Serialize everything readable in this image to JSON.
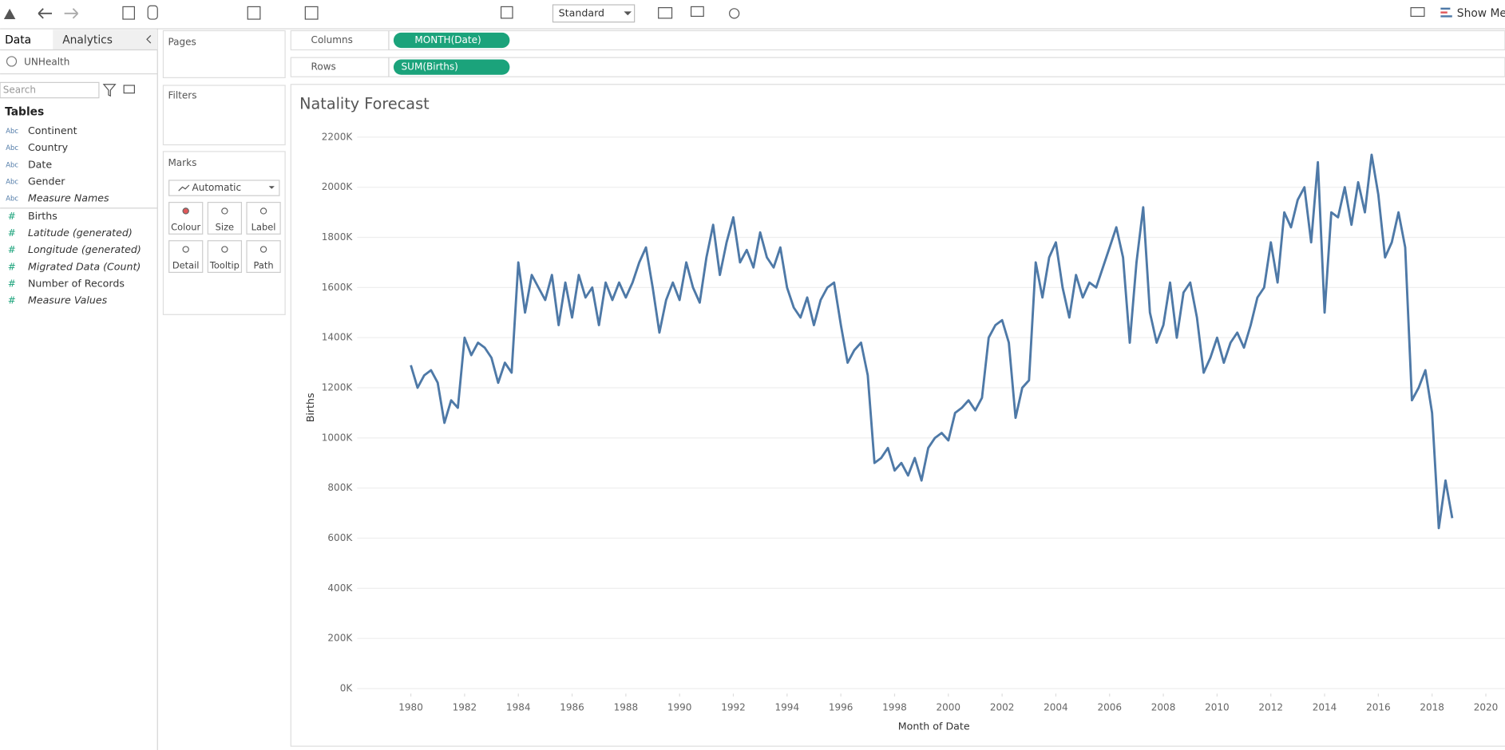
{
  "toolbar": {
    "fit": "Standard",
    "show_me": "Show Me"
  },
  "side_panel": {
    "tabs": [
      "Data",
      "Analytics"
    ],
    "data_source": "UNHealth",
    "search": "Search",
    "tables_heading": "Tables",
    "dimensions": [
      "Continent",
      "Country",
      "Date",
      "Gender",
      "Measure Names"
    ],
    "measures": [
      "Births",
      "Latitude (generated)",
      "Longitude (generated)",
      "Migrated Data (Count)",
      "Number of Records",
      "Measure Values"
    ]
  },
  "cards": {
    "pages": "Pages",
    "filters": "Filters",
    "marks": "Marks",
    "mark_type": "Automatic",
    "mark_buttons": [
      "Colour",
      "Size",
      "Label",
      "Detail",
      "Tooltip",
      "Path"
    ]
  },
  "shelves": {
    "columns": "Columns",
    "columns_pill": "MONTH(Date)",
    "rows": "Rows",
    "rows_pill": "SUM(Births)"
  },
  "chart_data": {
    "type": "line",
    "title": "Natality Forecast",
    "x_label": "Month of Date",
    "y_label": "Births",
    "color": "#4e79a7",
    "grid": true,
    "xlim": [
      1978,
      2020.71
    ],
    "xticks": [
      1980,
      1982,
      1984,
      1986,
      1988,
      1990,
      1992,
      1994,
      1996,
      1998,
      2000,
      2002,
      2004,
      2006,
      2008,
      2010,
      2012,
      2014,
      2016,
      2018,
      2020
    ],
    "ylim": [
      -20000,
      2240000
    ],
    "yticks": [
      {
        "value": 0,
        "label": "0K"
      },
      {
        "value": 200000,
        "label": "200K"
      },
      {
        "value": 400000,
        "label": "400K"
      },
      {
        "value": 600000,
        "label": "600K"
      },
      {
        "value": 800000,
        "label": "800K"
      },
      {
        "value": 1000000,
        "label": "1000K"
      },
      {
        "value": 1200000,
        "label": "1200K"
      },
      {
        "value": 1400000,
        "label": "1400K"
      },
      {
        "value": 1600000,
        "label": "1600K"
      },
      {
        "value": 1800000,
        "label": "1800K"
      },
      {
        "value": 2000000,
        "label": "2000K"
      },
      {
        "value": 2200000,
        "label": "2200K"
      }
    ],
    "x": [
      1980,
      1980.25,
      1980.5,
      1980.75,
      1981,
      1981.25,
      1981.5,
      1981.75,
      1982,
      1982.25,
      1982.5,
      1982.75,
      1983,
      1983.25,
      1983.5,
      1983.75,
      1984,
      1984.25,
      1984.5,
      1984.75,
      1985,
      1985.25,
      1985.5,
      1985.75,
      1986,
      1986.25,
      1986.5,
      1986.75,
      1987,
      1987.25,
      1987.5,
      1987.75,
      1988,
      1988.25,
      1988.5,
      1988.75,
      1989,
      1989.25,
      1989.5,
      1989.75,
      1990,
      1990.25,
      1990.5,
      1990.75,
      1991,
      1991.25,
      1991.5,
      1991.75,
      1992,
      1992.25,
      1992.5,
      1992.75,
      1993,
      1993.25,
      1993.5,
      1993.75,
      1994,
      1994.25,
      1994.5,
      1994.75,
      1995,
      1995.25,
      1995.5,
      1995.75,
      1996,
      1996.25,
      1996.5,
      1996.75,
      1997,
      1997.25,
      1997.5,
      1997.75,
      1998,
      1998.25,
      1998.5,
      1998.75,
      1999,
      1999.25,
      1999.5,
      1999.75,
      2000,
      2000.25,
      2000.5,
      2000.75,
      2001,
      2001.25,
      2001.5,
      2001.75,
      2002,
      2002.25,
      2002.5,
      2002.75,
      2003,
      2003.25,
      2003.5,
      2003.75,
      2004,
      2004.25,
      2004.5,
      2004.75,
      2005,
      2005.25,
      2005.5,
      2005.75,
      2006,
      2006.25,
      2006.5,
      2006.75,
      2007,
      2007.25,
      2007.5,
      2007.75,
      2008,
      2008.25,
      2008.5,
      2008.75,
      2009,
      2009.25,
      2009.5,
      2009.75,
      2010,
      2010.25,
      2010.5,
      2010.75,
      2011,
      2011.25,
      2011.5,
      2011.75,
      2012,
      2012.25,
      2012.5,
      2012.75,
      2013,
      2013.25,
      2013.5,
      2013.75,
      2014,
      2014.25,
      2014.5,
      2014.75,
      2015,
      2015.25,
      2015.5,
      2015.75,
      2016,
      2016.25,
      2016.5,
      2016.75,
      2017,
      2017.25,
      2017.5,
      2017.75,
      2018,
      2018.25,
      2018.5,
      2018.75
    ],
    "values": [
      1290000,
      1200000,
      1250000,
      1270000,
      1220000,
      1060000,
      1150000,
      1120000,
      1400000,
      1330000,
      1380000,
      1360000,
      1320000,
      1220000,
      1300000,
      1260000,
      1700000,
      1500000,
      1650000,
      1600000,
      1550000,
      1650000,
      1450000,
      1620000,
      1480000,
      1650000,
      1560000,
      1600000,
      1450000,
      1620000,
      1550000,
      1620000,
      1560000,
      1620000,
      1700000,
      1760000,
      1600000,
      1420000,
      1550000,
      1620000,
      1550000,
      1700000,
      1600000,
      1540000,
      1720000,
      1850000,
      1650000,
      1780000,
      1880000,
      1700000,
      1750000,
      1680000,
      1820000,
      1720000,
      1680000,
      1760000,
      1600000,
      1520000,
      1480000,
      1560000,
      1450000,
      1550000,
      1600000,
      1620000,
      1450000,
      1300000,
      1350000,
      1380000,
      1250000,
      900000,
      920000,
      960000,
      870000,
      900000,
      850000,
      920000,
      830000,
      960000,
      1000000,
      1020000,
      990000,
      1100000,
      1120000,
      1150000,
      1110000,
      1160000,
      1400000,
      1450000,
      1470000,
      1380000,
      1080000,
      1200000,
      1230000,
      1700000,
      1560000,
      1720000,
      1780000,
      1600000,
      1480000,
      1650000,
      1560000,
      1620000,
      1600000,
      1680000,
      1760000,
      1840000,
      1720000,
      1380000,
      1700000,
      1920000,
      1500000,
      1380000,
      1450000,
      1620000,
      1400000,
      1580000,
      1620000,
      1480000,
      1260000,
      1320000,
      1400000,
      1300000,
      1380000,
      1420000,
      1360000,
      1450000,
      1560000,
      1600000,
      1780000,
      1620000,
      1900000,
      1840000,
      1950000,
      2000000,
      1780000,
      2100000,
      1500000,
      1900000,
      1880000,
      2000000,
      1850000,
      2020000,
      1900000,
      2130000,
      1970000,
      1720000,
      1780000,
      1900000,
      1760000,
      1150000,
      1200000,
      1270000,
      1100000,
      640000,
      830000,
      680000
    ]
  }
}
